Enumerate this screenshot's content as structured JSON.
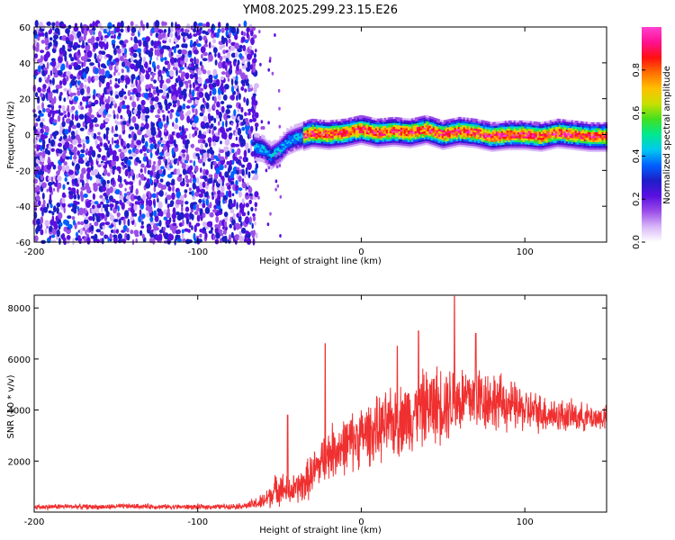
{
  "title": "YM08.2025.299.23.15.E26",
  "chart_data": [
    {
      "type": "heatmap",
      "id": "spectrogram",
      "xlabel": "Height of straight line (km)",
      "ylabel": "Frequency (Hz)",
      "xlim": [
        -200,
        150
      ],
      "ylim": [
        -60,
        60
      ],
      "xticks": [
        -200,
        -100,
        0,
        100
      ],
      "yticks": [
        -60,
        -40,
        -20,
        0,
        20,
        40,
        60
      ],
      "colorbar": {
        "label": "Normalized spectral amplitude",
        "range": [
          0.0,
          1.0
        ],
        "ticks": [
          0.0,
          0.2,
          0.4,
          0.6,
          0.8
        ],
        "tick_labels": [
          "0.0",
          "0.2",
          "0.4",
          "0.6",
          "0.8"
        ],
        "colormap": [
          "#ffffff",
          "#d8b8f8",
          "#9b4de8",
          "#5a10e0",
          "#1e1ec8",
          "#0060ff",
          "#00c8f0",
          "#00e890",
          "#40e020",
          "#c8e000",
          "#ffc000",
          "#ff7000",
          "#ff1010",
          "#ff1090",
          "#ff40d0"
        ]
      },
      "regions": [
        {
          "name": "noise",
          "x_range": [
            -200,
            -65
          ],
          "freq_range": [
            -60,
            60
          ],
          "amplitude": 0.3
        },
        {
          "name": "transition",
          "x_range": [
            -65,
            -35
          ],
          "freq_center": -8,
          "freq_spread": 8,
          "amplitude": 0.45
        },
        {
          "name": "signal",
          "x_range": [
            -35,
            150
          ],
          "freq_center": 0,
          "freq_spread": 4,
          "amplitude": 0.95
        }
      ],
      "ridge": {
        "x": [
          -70,
          -60,
          -55,
          -50,
          -45,
          -40,
          -30,
          -20,
          -10,
          0,
          10,
          20,
          30,
          40,
          50,
          60,
          70,
          80,
          90,
          100,
          110,
          120,
          130,
          140,
          150
        ],
        "freq": [
          -6,
          -8,
          -12,
          -9,
          -4,
          -2,
          1,
          0,
          1,
          3,
          1,
          2,
          1,
          3,
          0,
          2,
          1,
          -1,
          0,
          0,
          -1,
          1,
          0,
          -1,
          -1
        ]
      }
    },
    {
      "type": "line",
      "id": "snr",
      "xlabel": "Height of straight line (km)",
      "ylabel": "SNR (10 * v/v)",
      "xlim": [
        -200,
        150
      ],
      "ylim": [
        0,
        8500
      ],
      "xticks": [
        -200,
        -100,
        0,
        100
      ],
      "yticks": [
        2000,
        4000,
        6000,
        8000
      ],
      "color": "#f03030",
      "series": [
        {
          "name": "SNR",
          "x": [
            -200,
            -180,
            -160,
            -140,
            -120,
            -100,
            -80,
            -70,
            -60,
            -55,
            -50,
            -45,
            -40,
            -35,
            -30,
            -25,
            -20,
            -15,
            -10,
            -5,
            0,
            10,
            20,
            30,
            40,
            50,
            60,
            70,
            80,
            90,
            100,
            110,
            120,
            130,
            140,
            150
          ],
          "values": [
            200,
            220,
            200,
            230,
            210,
            200,
            220,
            250,
            400,
            700,
            1000,
            800,
            900,
            1100,
            1500,
            1900,
            2300,
            2500,
            2600,
            2800,
            3000,
            3200,
            3500,
            3800,
            4100,
            4300,
            4400,
            4500,
            4400,
            4200,
            4000,
            3900,
            3800,
            3750,
            3700,
            3700
          ],
          "spread": [
            120,
            120,
            120,
            120,
            120,
            120,
            120,
            150,
            400,
            600,
            800,
            700,
            700,
            900,
            1000,
            1100,
            1200,
            1300,
            1300,
            1400,
            1400,
            1500,
            1600,
            1700,
            1800,
            1800,
            1700,
            1600,
            1400,
            1200,
            1000,
            900,
            800,
            700,
            600,
            600
          ]
        }
      ],
      "peaks": [
        {
          "x": -45,
          "y": 3800
        },
        {
          "x": -22,
          "y": 6600
        },
        {
          "x": 22,
          "y": 6500
        },
        {
          "x": 35,
          "y": 7100
        },
        {
          "x": 57,
          "y": 8450
        },
        {
          "x": 70,
          "y": 7000
        }
      ]
    }
  ]
}
